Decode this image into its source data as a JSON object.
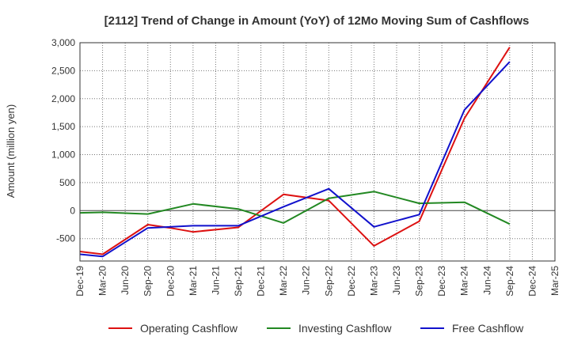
{
  "chart_data": {
    "type": "line",
    "title": "[2112]  Trend of Change in Amount (YoY) of 12Mo Moving Sum of Cashflows",
    "xlabel": "",
    "ylabel": "Amount (million yen)",
    "ylim": [
      -900,
      3000
    ],
    "yticks": [
      -500,
      0,
      500,
      1000,
      1500,
      2000,
      2500,
      3000
    ],
    "ytick_labels": [
      "-500",
      "0",
      "500",
      "1,000",
      "1,500",
      "2,000",
      "2,500",
      "3,000"
    ],
    "categories": [
      "Dec-19",
      "Mar-20",
      "Jun-20",
      "Sep-20",
      "Dec-20",
      "Mar-21",
      "Jun-21",
      "Sep-21",
      "Dec-21",
      "Mar-22",
      "Jun-22",
      "Sep-22",
      "Dec-22",
      "Mar-23",
      "Jun-23",
      "Sep-23",
      "Dec-23",
      "Mar-24",
      "Jun-24",
      "Sep-24",
      "Dec-24",
      "Mar-25"
    ],
    "grid": true,
    "legend_position": "bottom",
    "series": [
      {
        "name": "Operating Cashflow",
        "color": "#dd1111",
        "values": [
          -730,
          -780,
          null,
          -250,
          -310,
          -380,
          null,
          -300,
          null,
          290,
          null,
          180,
          null,
          -630,
          null,
          -190,
          null,
          1650,
          null,
          2920,
          null,
          null
        ]
      },
      {
        "name": "Investing Cashflow",
        "color": "#228822",
        "values": [
          -40,
          -30,
          null,
          -60,
          null,
          120,
          null,
          30,
          null,
          -220,
          null,
          220,
          null,
          340,
          null,
          130,
          null,
          150,
          null,
          -240,
          null,
          null
        ]
      },
      {
        "name": "Free Cashflow",
        "color": "#1111cc",
        "values": [
          -780,
          -820,
          null,
          -310,
          null,
          -270,
          null,
          -270,
          null,
          70,
          null,
          390,
          null,
          -290,
          null,
          -70,
          null,
          1800,
          null,
          2660,
          null,
          null
        ]
      }
    ]
  }
}
